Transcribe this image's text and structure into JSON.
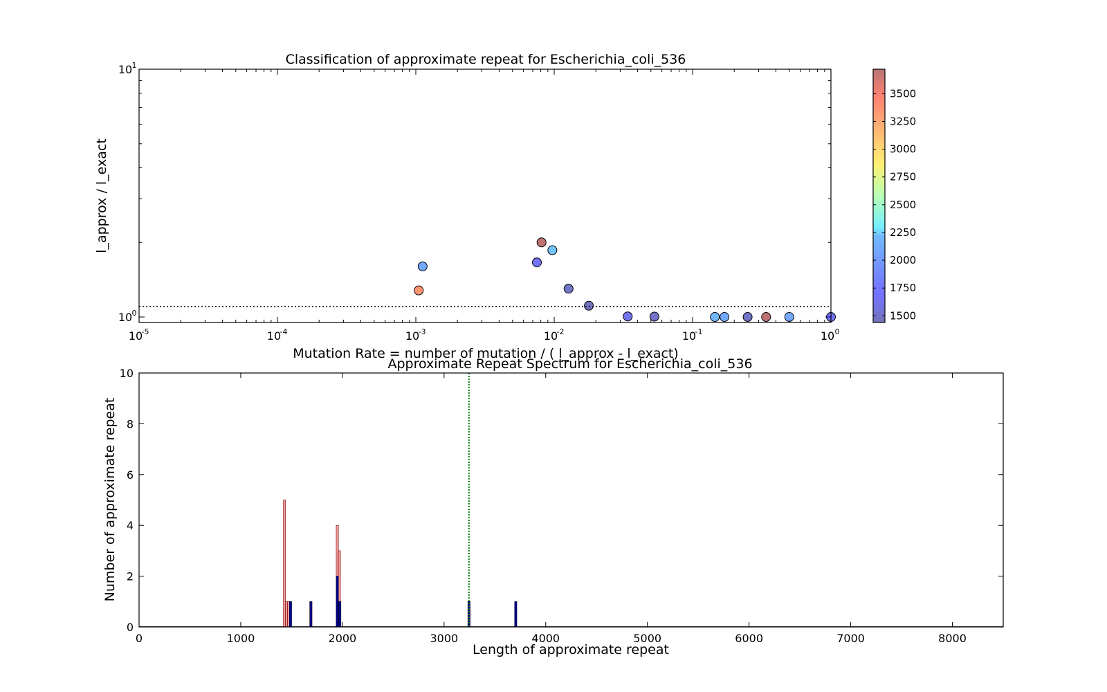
{
  "chart_data": [
    {
      "type": "scatter",
      "title": "Classification of approximate repeat for Escherichia_coli_536",
      "xlabel": "Mutation Rate = number of mutation / ( l_approx - l_exact)",
      "ylabel": "l_approx / l_exact",
      "xscale": "log",
      "yscale": "log",
      "xlim": [
        1e-05,
        1
      ],
      "ylim": [
        0.95,
        10
      ],
      "xticks": [
        {
          "base": "10",
          "exp": "-5",
          "value": 1e-05
        },
        {
          "base": "10",
          "exp": "-4",
          "value": 0.0001
        },
        {
          "base": "10",
          "exp": "-3",
          "value": 0.001
        },
        {
          "base": "10",
          "exp": "-2",
          "value": 0.01
        },
        {
          "base": "10",
          "exp": "-1",
          "value": 0.1
        },
        {
          "base": "10",
          "exp": "0",
          "value": 1
        }
      ],
      "yticks": [
        {
          "base": "10",
          "exp": "0",
          "value": 1
        },
        {
          "base": "10",
          "exp": "1",
          "value": 10
        }
      ],
      "threshold_y": 1.1,
      "grid": false,
      "colorbar": {
        "ticks": [
          "1500",
          "1750",
          "2000",
          "2250",
          "2500",
          "2750",
          "3000",
          "3250",
          "3500"
        ],
        "range": [
          1440,
          3720
        ],
        "colormap": "jet"
      },
      "points": [
        {
          "x": 0.00105,
          "y": 1.28,
          "c": 3300
        },
        {
          "x": 0.00112,
          "y": 1.6,
          "c": 1950
        },
        {
          "x": 0.0075,
          "y": 1.66,
          "c": 1700
        },
        {
          "x": 0.0081,
          "y": 2.0,
          "c": 3700
        },
        {
          "x": 0.0097,
          "y": 1.86,
          "c": 2050
        },
        {
          "x": 0.0127,
          "y": 1.3,
          "c": 1500
        },
        {
          "x": 0.0178,
          "y": 1.11,
          "c": 1450
        },
        {
          "x": 0.034,
          "y": 1.005,
          "c": 1650
        },
        {
          "x": 0.053,
          "y": 1.003,
          "c": 1500
        },
        {
          "x": 0.145,
          "y": 1.0,
          "c": 2000
        },
        {
          "x": 0.17,
          "y": 1.0,
          "c": 1950
        },
        {
          "x": 0.25,
          "y": 1.0,
          "c": 1500
        },
        {
          "x": 0.34,
          "y": 1.0,
          "c": 3700
        },
        {
          "x": 0.5,
          "y": 1.0,
          "c": 1950
        },
        {
          "x": 1.0,
          "y": 1.0,
          "c": 1700
        }
      ]
    },
    {
      "type": "bar",
      "title": "Approximate Repeat Spectrum for Escherichia_coli_536",
      "xlabel": "Length of approximate repeat",
      "ylabel": "Number of approximate repeat",
      "xlim": [
        0,
        8500
      ],
      "ylim": [
        0,
        10
      ],
      "xticks": [
        "0",
        "1000",
        "2000",
        "3000",
        "4000",
        "5000",
        "6000",
        "7000",
        "8000"
      ],
      "yticks": [
        "0",
        "2",
        "4",
        "6",
        "8",
        "10"
      ],
      "vline_x": 3245,
      "series": [
        {
          "color": "#e06060",
          "bars": [
            {
              "x": 1430,
              "value": 5
            },
            {
              "x": 1450,
              "value": 1
            },
            {
              "x": 1470,
              "value": 1
            },
            {
              "x": 1690,
              "value": 1
            },
            {
              "x": 1950,
              "value": 4
            },
            {
              "x": 1970,
              "value": 3
            },
            {
              "x": 3245,
              "value": 1
            }
          ]
        },
        {
          "color": "#00008b",
          "bars": [
            {
              "x": 1490,
              "value": 1
            },
            {
              "x": 1690,
              "value": 1
            },
            {
              "x": 1950,
              "value": 2
            },
            {
              "x": 1975,
              "value": 1
            },
            {
              "x": 3245,
              "value": 1
            },
            {
              "x": 3705,
              "value": 1
            }
          ]
        }
      ]
    }
  ]
}
